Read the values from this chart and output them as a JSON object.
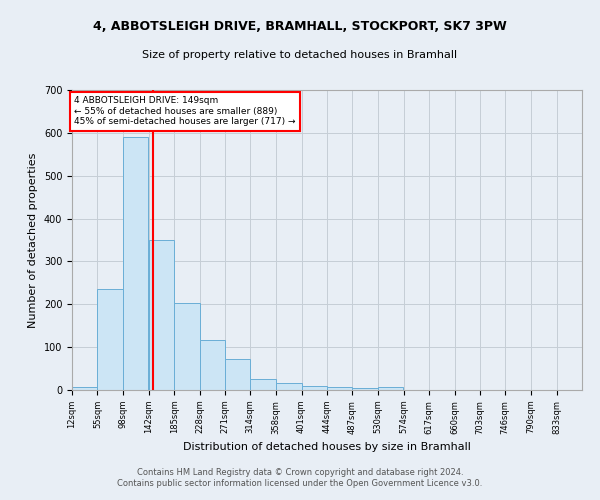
{
  "title_line1": "4, ABBOTSLEIGH DRIVE, BRAMHALL, STOCKPORT, SK7 3PW",
  "title_line2": "Size of property relative to detached houses in Bramhall",
  "xlabel": "Distribution of detached houses by size in Bramhall",
  "ylabel": "Number of detached properties",
  "footer_line1": "Contains HM Land Registry data © Crown copyright and database right 2024.",
  "footer_line2": "Contains public sector information licensed under the Open Government Licence v3.0.",
  "bin_edges": [
    12,
    55,
    98,
    142,
    185,
    228,
    271,
    314,
    358,
    401,
    444,
    487,
    530,
    574,
    617,
    660,
    703,
    746,
    790,
    833,
    876
  ],
  "bar_heights": [
    8,
    235,
    590,
    350,
    203,
    116,
    73,
    25,
    16,
    10,
    7,
    5,
    8,
    0,
    0,
    0,
    0,
    0,
    0,
    0
  ],
  "bar_color": "#cce5f5",
  "bar_edge_color": "#6aaed6",
  "property_size": 149,
  "property_line_color": "red",
  "annotation_text": "4 ABBOTSLEIGH DRIVE: 149sqm\n← 55% of detached houses are smaller (889)\n45% of semi-detached houses are larger (717) →",
  "annotation_box_color": "white",
  "annotation_box_edge": "red",
  "ylim": [
    0,
    700
  ],
  "yticks": [
    0,
    100,
    200,
    300,
    400,
    500,
    600,
    700
  ],
  "xlim_left": 12,
  "xlim_right": 876,
  "background_color": "#e8eef5",
  "grid_color": "#c5cdd6",
  "title_fontsize": 9,
  "subtitle_fontsize": 8,
  "ylabel_fontsize": 8,
  "xlabel_fontsize": 8,
  "tick_fontsize": 6,
  "footer_fontsize": 6
}
